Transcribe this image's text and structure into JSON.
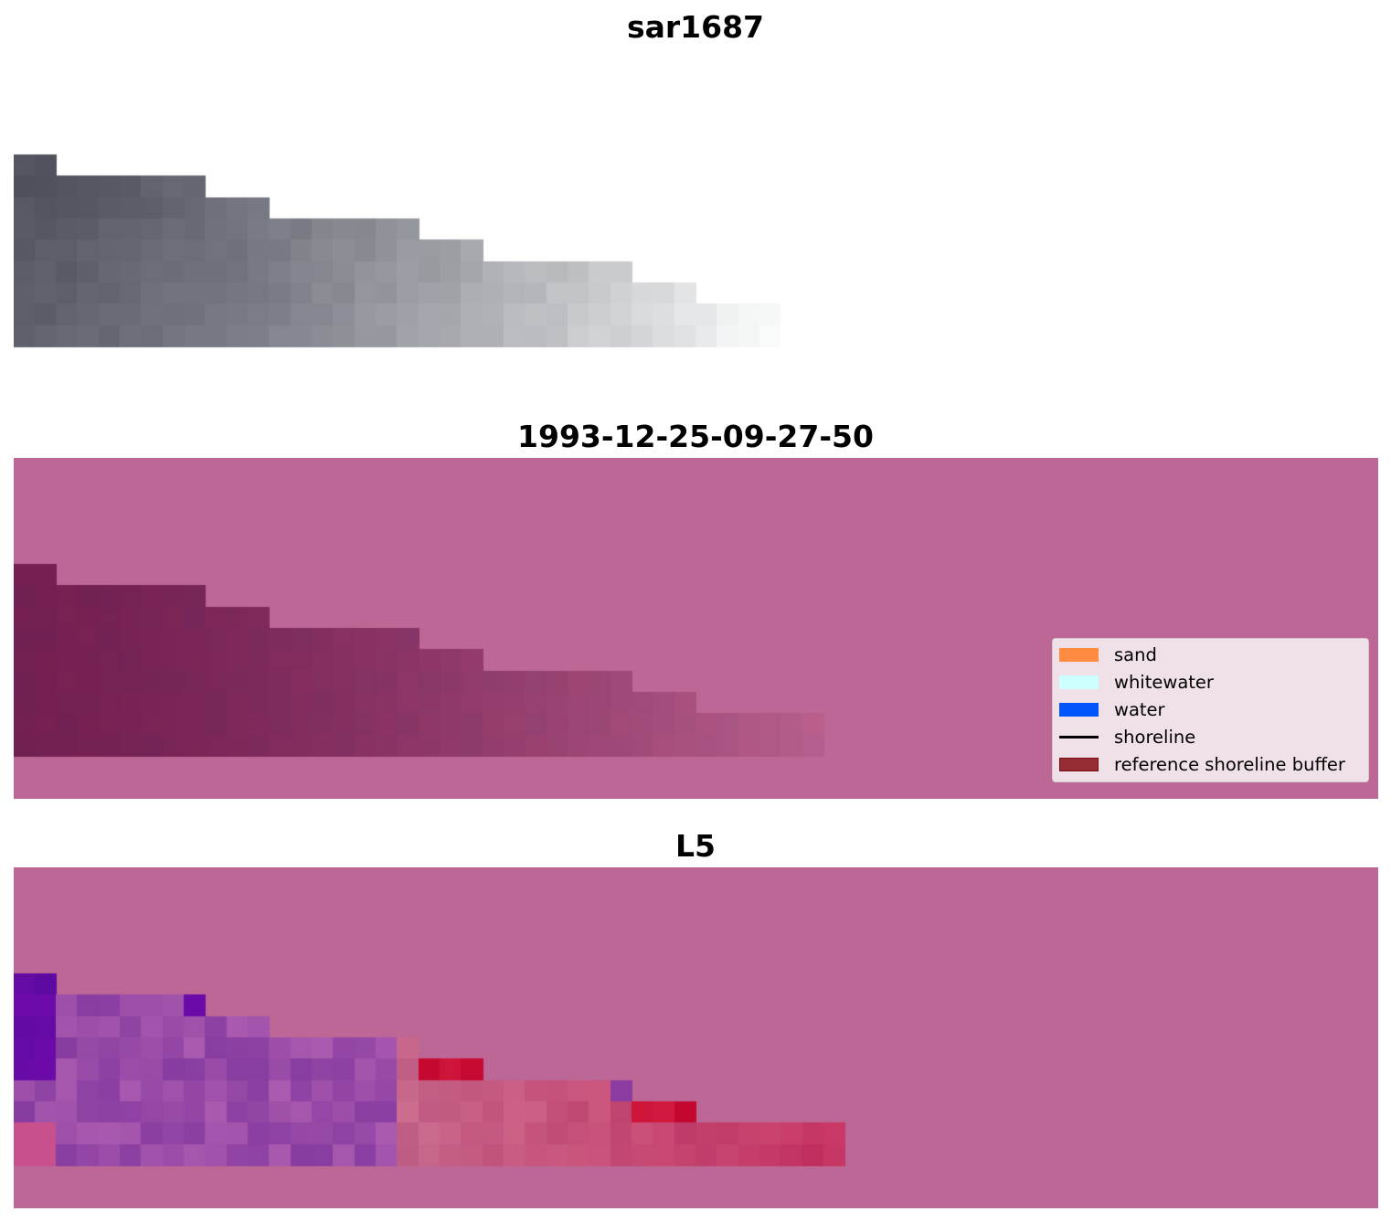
{
  "panels": [
    {
      "title": "sar1687",
      "kind": "gray"
    },
    {
      "title": "1993-12-25-09-27-50",
      "kind": "classified"
    },
    {
      "title": "L5",
      "kind": "falsecolor"
    }
  ],
  "grid": {
    "cols": 64,
    "rows": 16,
    "first_data_row": 5,
    "row_lengths_cells": [
      2,
      9,
      12,
      19,
      22,
      29,
      32,
      38,
      38
    ],
    "row_lengths_cells_L5": [
      2,
      9,
      12,
      19,
      22,
      29,
      32,
      39,
      39
    ]
  },
  "colors": {
    "background_overlay": "#bc6795",
    "legend_bg": "#f2e2ea"
  },
  "legend": {
    "items": [
      {
        "label": "sand",
        "color": "#ff8c40",
        "type": "patch"
      },
      {
        "label": "whitewater",
        "color": "#ccffff",
        "type": "patch"
      },
      {
        "label": "water",
        "color": "#0055ff",
        "type": "patch"
      },
      {
        "label": "shoreline",
        "color": "#000000",
        "type": "line"
      },
      {
        "label": "reference shoreline buffer",
        "color": "#962d35",
        "type": "patch"
      }
    ]
  }
}
